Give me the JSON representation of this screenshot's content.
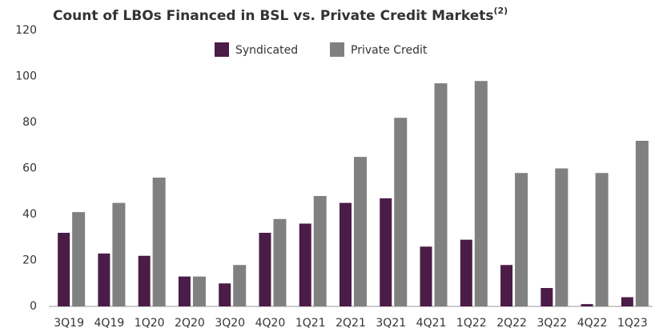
{
  "chart_data": {
    "type": "bar",
    "title": "Count of LBOs Financed in BSL vs. Private Credit Markets",
    "title_note": "(2)",
    "categories": [
      "3Q19",
      "4Q19",
      "1Q20",
      "2Q20",
      "3Q20",
      "4Q20",
      "1Q21",
      "2Q21",
      "3Q21",
      "4Q21",
      "1Q22",
      "2Q22",
      "3Q22",
      "4Q22",
      "1Q23"
    ],
    "series": [
      {
        "name": "Syndicated",
        "color": "#4b1c47",
        "values": [
          32,
          23,
          22,
          13,
          10,
          32,
          36,
          45,
          47,
          26,
          29,
          18,
          8,
          1,
          4
        ]
      },
      {
        "name": "Private Credit",
        "color": "#808080",
        "values": [
          41,
          45,
          56,
          13,
          18,
          38,
          48,
          65,
          82,
          97,
          98,
          58,
          60,
          58,
          72
        ]
      }
    ],
    "ylim": [
      0,
      120
    ],
    "yticks": [
      0,
      20,
      40,
      60,
      80,
      100,
      120
    ],
    "grid": false,
    "legend": "top"
  }
}
